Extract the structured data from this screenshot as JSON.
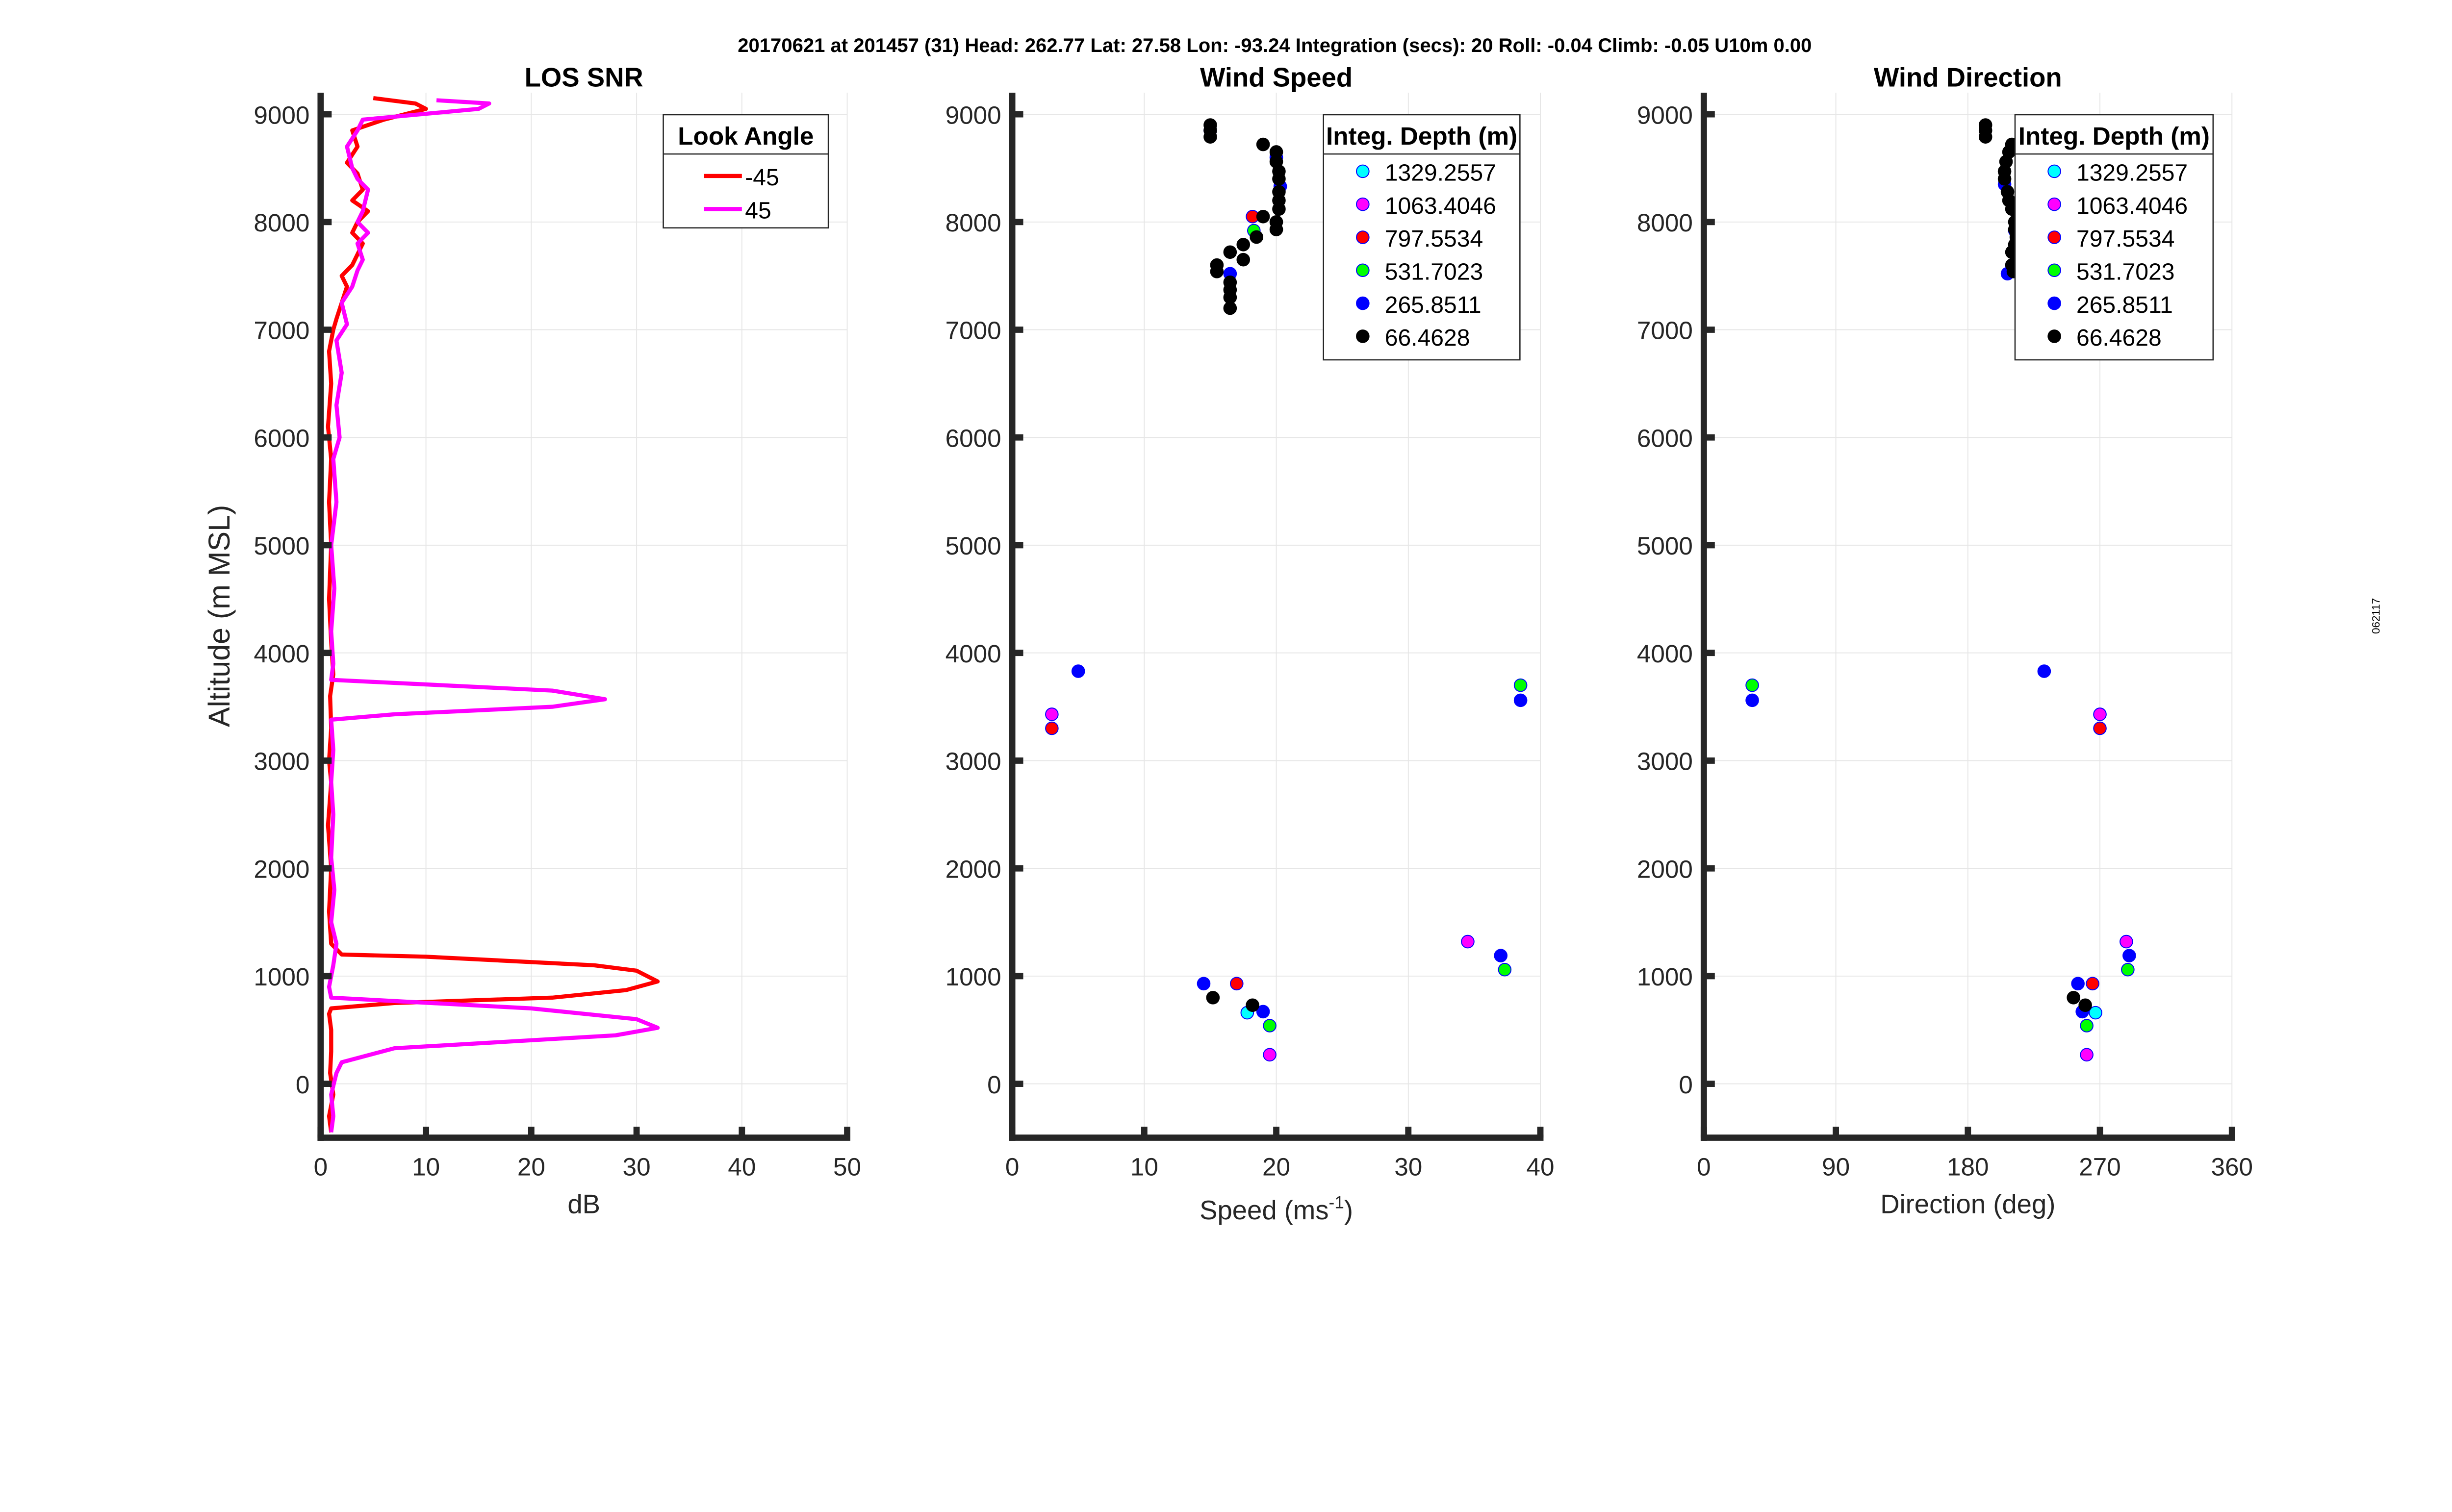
{
  "header": "20170621 at 201457 (31)  Head: 262.77  Lat: 27.58  Lon: -93.24  Integration (secs): 20  Roll: -0.04  Climb: -0.05  U10m 0.00",
  "side_label": "062117",
  "colors": {
    "cyan": "#00ffff",
    "magenta": "#ff00ff",
    "red": "#ff0000",
    "green": "#00ff00",
    "blue": "#0000ff",
    "black": "#000000",
    "axis": "#262626",
    "grid": "#e6e6e6"
  },
  "chart_data": [
    {
      "type": "line",
      "title": "LOS SNR",
      "xlabel": "dB",
      "ylabel": "Altitude (m MSL)",
      "xlim": [
        0,
        50
      ],
      "ylim": [
        -500,
        9200
      ],
      "xticks": [
        0,
        10,
        20,
        30,
        40,
        50
      ],
      "yticks": [
        0,
        1000,
        2000,
        3000,
        4000,
        5000,
        6000,
        7000,
        8000,
        9000
      ],
      "grid": true,
      "legend": {
        "title": "Look Angle",
        "placement": "top-right"
      },
      "series": [
        {
          "name": "-45",
          "color": "#ff0000",
          "points": [
            [
              1,
              -450
            ],
            [
              0.8,
              -300
            ],
            [
              1.2,
              -100
            ],
            [
              0.9,
              100
            ],
            [
              1,
              300
            ],
            [
              1,
              500
            ],
            [
              0.8,
              650
            ],
            [
              1,
              700
            ],
            [
              7,
              750
            ],
            [
              22,
              800
            ],
            [
              29,
              870
            ],
            [
              32,
              950
            ],
            [
              30,
              1050
            ],
            [
              26,
              1100
            ],
            [
              10,
              1180
            ],
            [
              2,
              1200
            ],
            [
              1,
              1300
            ],
            [
              0.8,
              1600
            ],
            [
              1,
              2000
            ],
            [
              0.7,
              2400
            ],
            [
              1,
              2800
            ],
            [
              0.8,
              3000
            ],
            [
              1,
              3300
            ],
            [
              0.9,
              3600
            ],
            [
              1.2,
              3800
            ],
            [
              1,
              4100
            ],
            [
              0.8,
              4500
            ],
            [
              1,
              5000
            ],
            [
              0.8,
              5400
            ],
            [
              1,
              5800
            ],
            [
              0.7,
              6100
            ],
            [
              1,
              6500
            ],
            [
              0.8,
              6800
            ],
            [
              1.2,
              7000
            ],
            [
              1.5,
              7100
            ],
            [
              2,
              7250
            ],
            [
              2.5,
              7400
            ],
            [
              2,
              7500
            ],
            [
              3,
              7600
            ],
            [
              3.5,
              7700
            ],
            [
              4,
              7800
            ],
            [
              3,
              7900
            ],
            [
              3.5,
              8000
            ],
            [
              4.5,
              8100
            ],
            [
              3,
              8200
            ],
            [
              4,
              8300
            ],
            [
              3.5,
              8450
            ],
            [
              2.5,
              8550
            ],
            [
              3.5,
              8700
            ],
            [
              3,
              8850
            ],
            [
              6,
              8950
            ],
            [
              10,
              9050
            ],
            [
              9,
              9100
            ],
            [
              5,
              9150
            ]
          ]
        },
        {
          "name": "45",
          "color": "#ff00ff",
          "points": [
            [
              1,
              -450
            ],
            [
              1.2,
              -300
            ],
            [
              1,
              -100
            ],
            [
              1.5,
              100
            ],
            [
              2,
              200
            ],
            [
              7,
              330
            ],
            [
              28,
              450
            ],
            [
              32,
              520
            ],
            [
              30,
              600
            ],
            [
              20,
              700
            ],
            [
              1,
              800
            ],
            [
              0.8,
              900
            ],
            [
              1,
              1000
            ],
            [
              1.2,
              1100
            ],
            [
              1.5,
              1300
            ],
            [
              1,
              1500
            ],
            [
              1.3,
              1800
            ],
            [
              1,
              2100
            ],
            [
              1.2,
              2500
            ],
            [
              1,
              2800
            ],
            [
              1.2,
              3100
            ],
            [
              1,
              3380
            ],
            [
              7,
              3430
            ],
            [
              22,
              3500
            ],
            [
              27,
              3570
            ],
            [
              22,
              3650
            ],
            [
              1,
              3750
            ],
            [
              1.2,
              3900
            ],
            [
              1,
              4200
            ],
            [
              1.3,
              4600
            ],
            [
              1,
              5000
            ],
            [
              1.5,
              5400
            ],
            [
              1.2,
              5800
            ],
            [
              1.8,
              6000
            ],
            [
              1.5,
              6300
            ],
            [
              2,
              6600
            ],
            [
              1.5,
              6900
            ],
            [
              2.5,
              7050
            ],
            [
              2,
              7250
            ],
            [
              3,
              7400
            ],
            [
              3.5,
              7550
            ],
            [
              4,
              7650
            ],
            [
              3.5,
              7800
            ],
            [
              4.5,
              7900
            ],
            [
              3.5,
              8000
            ],
            [
              4,
              8100
            ],
            [
              4.5,
              8300
            ],
            [
              3.5,
              8400
            ],
            [
              3,
              8500
            ],
            [
              2.5,
              8700
            ],
            [
              3.5,
              8850
            ],
            [
              4,
              8950
            ],
            [
              15,
              9050
            ],
            [
              16,
              9100
            ],
            [
              11,
              9130
            ]
          ]
        }
      ]
    },
    {
      "type": "scatter",
      "title": "Wind Speed",
      "xlabel": "Speed (ms",
      "xlabel_sup": "-1",
      "xlabel_end": ")",
      "xlim": [
        0,
        40
      ],
      "ylim": [
        -500,
        9200
      ],
      "xticks": [
        0,
        10,
        20,
        30,
        40
      ],
      "yticks": [
        0,
        1000,
        2000,
        3000,
        4000,
        5000,
        6000,
        7000,
        8000,
        9000
      ],
      "grid": true,
      "legend": {
        "title": "Integ. Depth (m)",
        "placement": "top-right"
      },
      "series": [
        {
          "name": "1329.2557",
          "color": "#00ffff",
          "points": [
            [
              17.8,
              660
            ]
          ]
        },
        {
          "name": "1063.4046",
          "color": "#ff00ff",
          "points": [
            [
              3,
              3430
            ],
            [
              34.5,
              1320
            ],
            [
              19.5,
              270
            ]
          ]
        },
        {
          "name": "797.5534",
          "color": "#ff0000",
          "points": [
            [
              3,
              3300
            ],
            [
              17,
              930
            ],
            [
              18.2,
              8050
            ]
          ]
        },
        {
          "name": "531.7023",
          "color": "#00ff00",
          "points": [
            [
              38.5,
              3700
            ],
            [
              37.3,
              1060
            ],
            [
              19.5,
              540
            ],
            [
              18.3,
              7920
            ]
          ]
        },
        {
          "name": "265.8511",
          "color": "#0000ff",
          "points": [
            [
              5,
              3830
            ],
            [
              38.5,
              3560
            ],
            [
              37,
              1190
            ],
            [
              14.5,
              930
            ],
            [
              19,
              670
            ],
            [
              16.5,
              7520
            ],
            [
              20.3,
              8330
            ],
            [
              20,
              8600
            ],
            [
              15,
              8850
            ]
          ]
        },
        {
          "name": "66.4628",
          "color": "#000000",
          "points": [
            [
              15,
              8900
            ],
            [
              15,
              8850
            ],
            [
              15,
              8790
            ],
            [
              19,
              8720
            ],
            [
              20,
              8650
            ],
            [
              20,
              8560
            ],
            [
              20.2,
              8470
            ],
            [
              20.2,
              8400
            ],
            [
              20.2,
              8280
            ],
            [
              20.2,
              8200
            ],
            [
              20.2,
              8120
            ],
            [
              20,
              8000
            ],
            [
              20,
              7930
            ],
            [
              19,
              8050
            ],
            [
              18.5,
              7860
            ],
            [
              17.5,
              7790
            ],
            [
              16.5,
              7720
            ],
            [
              17.5,
              7650
            ],
            [
              15.5,
              7600
            ],
            [
              15.5,
              7540
            ],
            [
              16.5,
              7440
            ],
            [
              16.5,
              7370
            ],
            [
              16.5,
              7300
            ],
            [
              16.5,
              7200
            ],
            [
              15.2,
              800
            ],
            [
              18.2,
              730
            ]
          ]
        }
      ]
    },
    {
      "type": "scatter",
      "title": "Wind Direction",
      "xlabel": "Direction (deg)",
      "xlim": [
        0,
        360
      ],
      "ylim": [
        -500,
        9200
      ],
      "xticks": [
        0,
        90,
        180,
        270,
        360
      ],
      "yticks": [
        0,
        1000,
        2000,
        3000,
        4000,
        5000,
        6000,
        7000,
        8000,
        9000
      ],
      "grid": true,
      "legend": {
        "title": "Integ. Depth (m)",
        "placement": "top-right"
      },
      "series": [
        {
          "name": "1329.2557",
          "color": "#00ffff",
          "points": [
            [
              267,
              660
            ]
          ]
        },
        {
          "name": "1063.4046",
          "color": "#ff00ff",
          "points": [
            [
              270,
              3430
            ],
            [
              288,
              1320
            ],
            [
              261,
              270
            ]
          ]
        },
        {
          "name": "797.5534",
          "color": "#ff0000",
          "points": [
            [
              270,
              3300
            ],
            [
              265,
              930
            ],
            [
              218,
              8050
            ]
          ]
        },
        {
          "name": "531.7023",
          "color": "#00ff00",
          "points": [
            [
              33,
              3700
            ],
            [
              289,
              1060
            ],
            [
              261,
              540
            ],
            [
              212,
              7920
            ]
          ]
        },
        {
          "name": "265.8511",
          "color": "#0000ff",
          "points": [
            [
              232,
              3830
            ],
            [
              33,
              3560
            ],
            [
              290,
              1190
            ],
            [
              255,
              930
            ],
            [
              258,
              670
            ],
            [
              207,
              7520
            ],
            [
              205,
              8350
            ]
          ]
        },
        {
          "name": "66.4628",
          "color": "#000000",
          "points": [
            [
              192,
              8900
            ],
            [
              192,
              8850
            ],
            [
              192,
              8790
            ],
            [
              210,
              8720
            ],
            [
              208,
              8650
            ],
            [
              206,
              8560
            ],
            [
              205,
              8470
            ],
            [
              205,
              8400
            ],
            [
              207,
              8280
            ],
            [
              208,
              8200
            ],
            [
              210,
              8120
            ],
            [
              212,
              8000
            ],
            [
              212,
              7930
            ],
            [
              214,
              8050
            ],
            [
              213,
              7860
            ],
            [
              212,
              7790
            ],
            [
              210,
              7720
            ],
            [
              214,
              7650
            ],
            [
              210,
              7600
            ],
            [
              211,
              7540
            ],
            [
              252,
              800
            ],
            [
              260,
              730
            ]
          ]
        }
      ]
    }
  ]
}
